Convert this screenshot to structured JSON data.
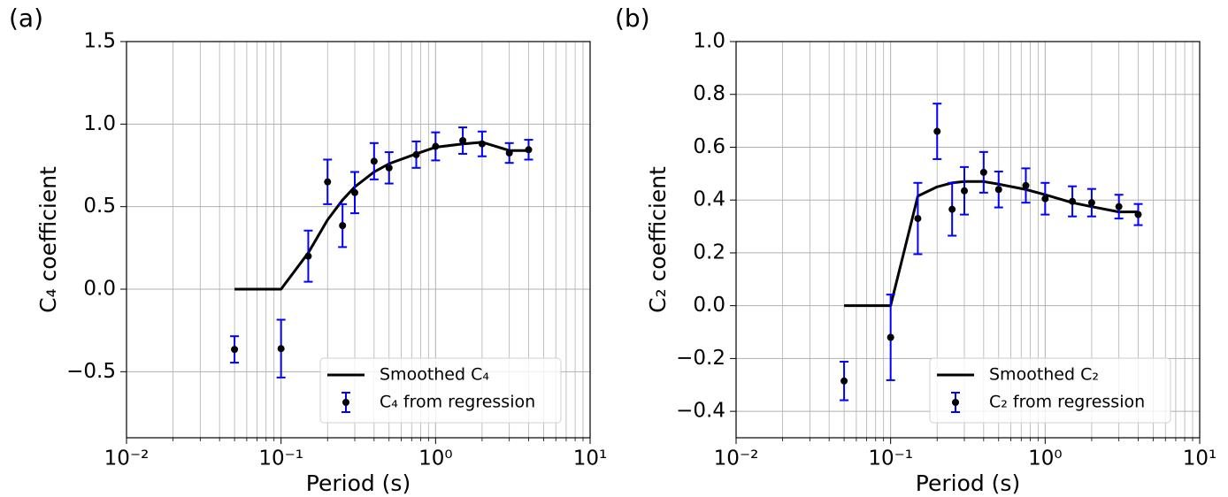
{
  "chart_data": [
    {
      "type": "line",
      "panel_label": "(a)",
      "xlabel": "Period (s)",
      "ylabel": "C₄ coefficient",
      "xscale": "log",
      "xlim": [
        0.01,
        10
      ],
      "ylim": [
        -0.9,
        1.5
      ],
      "xticks": [
        {
          "value": 0.01,
          "label": "10⁻²"
        },
        {
          "value": 0.1,
          "label": "10⁻¹"
        },
        {
          "value": 1,
          "label": "10⁰"
        },
        {
          "value": 10,
          "label": "10¹"
        }
      ],
      "xminorticks": [
        0.02,
        0.03,
        0.04,
        0.05,
        0.06,
        0.07,
        0.08,
        0.09,
        0.2,
        0.3,
        0.4,
        0.5,
        0.6,
        0.7,
        0.8,
        0.9,
        2,
        3,
        4,
        5,
        6,
        7,
        8,
        9
      ],
      "yticks": [
        {
          "value": -0.5,
          "label": "−0.5"
        },
        {
          "value": 0,
          "label": "0.0"
        },
        {
          "value": 0.5,
          "label": "0.5"
        },
        {
          "value": 1,
          "label": "1.0"
        },
        {
          "value": 1.5,
          "label": "1.5"
        }
      ],
      "grid": true,
      "legend": "lower right",
      "x": [
        0.05,
        0.1,
        0.15,
        0.2,
        0.25,
        0.3,
        0.4,
        0.5,
        0.75,
        1.0,
        1.5,
        2.0,
        3.0,
        4.0
      ],
      "series": [
        {
          "name": "Smoothed C₄",
          "mode": "line",
          "color": "#000000",
          "values": [
            0,
            0,
            0.22,
            0.42,
            0.54,
            0.62,
            0.71,
            0.76,
            0.82,
            0.86,
            0.88,
            0.89,
            0.84,
            0.84
          ]
        },
        {
          "name": "C₄ from regression",
          "mode": "errorbar",
          "color": "#000000",
          "error_color": "#0000ff",
          "values": [
            -0.365,
            -0.36,
            0.2,
            0.65,
            0.385,
            0.585,
            0.775,
            0.735,
            0.815,
            0.865,
            0.9,
            0.88,
            0.825,
            0.845
          ],
          "errors": [
            0.08,
            0.175,
            0.155,
            0.135,
            0.13,
            0.125,
            0.11,
            0.095,
            0.08,
            0.085,
            0.08,
            0.075,
            0.06,
            0.06
          ]
        }
      ]
    },
    {
      "type": "line",
      "panel_label": "(b)",
      "xlabel": "Period (s)",
      "ylabel": "C₂ coefficient",
      "xscale": "log",
      "xlim": [
        0.01,
        10
      ],
      "ylim": [
        -0.5,
        1.0
      ],
      "xticks": [
        {
          "value": 0.01,
          "label": "10⁻²"
        },
        {
          "value": 0.1,
          "label": "10⁻¹"
        },
        {
          "value": 1,
          "label": "10⁰"
        },
        {
          "value": 10,
          "label": "10¹"
        }
      ],
      "xminorticks": [
        0.02,
        0.03,
        0.04,
        0.05,
        0.06,
        0.07,
        0.08,
        0.09,
        0.2,
        0.3,
        0.4,
        0.5,
        0.6,
        0.7,
        0.8,
        0.9,
        2,
        3,
        4,
        5,
        6,
        7,
        8,
        9
      ],
      "yticks": [
        {
          "value": -0.4,
          "label": "−0.4"
        },
        {
          "value": -0.2,
          "label": "−0.2"
        },
        {
          "value": 0,
          "label": "0.0"
        },
        {
          "value": 0.2,
          "label": "0.2"
        },
        {
          "value": 0.4,
          "label": "0.4"
        },
        {
          "value": 0.6,
          "label": "0.6"
        },
        {
          "value": 0.8,
          "label": "0.8"
        },
        {
          "value": 1.0,
          "label": "1.0"
        }
      ],
      "grid": true,
      "legend": "lower right",
      "x": [
        0.05,
        0.1,
        0.15,
        0.2,
        0.25,
        0.3,
        0.4,
        0.5,
        0.75,
        1.0,
        1.5,
        2.0,
        3.0,
        4.0
      ],
      "series": [
        {
          "name": "Smoothed C₂",
          "mode": "line",
          "color": "#000000",
          "values": [
            0,
            0,
            0.415,
            0.45,
            0.465,
            0.47,
            0.47,
            0.46,
            0.44,
            0.42,
            0.39,
            0.375,
            0.355,
            0.355
          ]
        },
        {
          "name": "C₂ from regression",
          "mode": "errorbar",
          "color": "#000000",
          "error_color": "#0000ff",
          "values": [
            -0.285,
            -0.12,
            0.33,
            0.66,
            0.365,
            0.435,
            0.505,
            0.44,
            0.455,
            0.405,
            0.395,
            0.39,
            0.375,
            0.345
          ],
          "errors": [
            0.073,
            0.162,
            0.135,
            0.105,
            0.1,
            0.09,
            0.077,
            0.068,
            0.065,
            0.06,
            0.057,
            0.052,
            0.045,
            0.04
          ]
        }
      ]
    }
  ]
}
